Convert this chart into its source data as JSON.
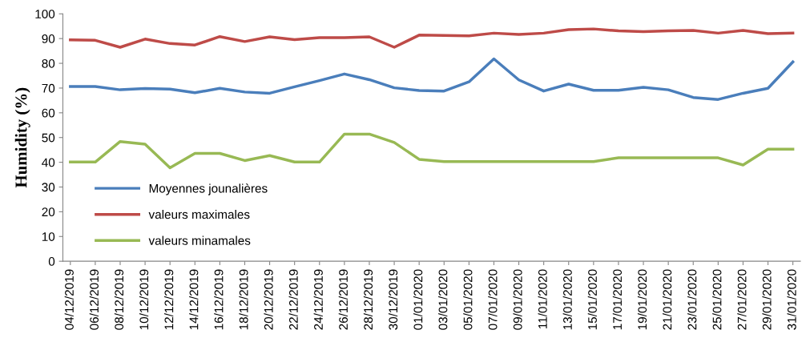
{
  "chart_data": {
    "type": "line",
    "ylabel": "Humidity (%)",
    "categories": [
      "04/12/2019",
      "06/12/2019",
      "08/12/2019",
      "10/12/2019",
      "12/12/2019",
      "14/12/2019",
      "16/12/2019",
      "18/12/2019",
      "20/12/2019",
      "22/12/2019",
      "24/12/2019",
      "26/12/2019",
      "28/12/2019",
      "30/12/2019",
      "01/01/2020",
      "03/01/2020",
      "05/01/2020",
      "07/01/2020",
      "09/01/2020",
      "11/01/2020",
      "13/01/2020",
      "15/01/2020",
      "17/01/2020",
      "19/01/2020",
      "21/01/2020",
      "23/01/2020",
      "25/01/2020",
      "27/01/2020",
      "29/01/2020",
      "31/01/2020"
    ],
    "series": [
      {
        "name": "Moyennes jounalières",
        "color": "#4a7ebb",
        "values": [
          70.6,
          70.6,
          69.3,
          69.8,
          69.6,
          68.1,
          69.9,
          68.4,
          67.9,
          70.5,
          73,
          75.7,
          73.4,
          70.1,
          69,
          68.8,
          72.5,
          81.8,
          73.3,
          68.8,
          71.6,
          69.1,
          69.1,
          70.3,
          69.3,
          66.2,
          65.4,
          67.9,
          69.9,
          80.6
        ]
      },
      {
        "name": "valeurs maximales",
        "color": "#be4b48",
        "values": [
          89.5,
          89.3,
          86.5,
          89.8,
          88,
          87.4,
          90.8,
          88.8,
          90.7,
          89.6,
          90.4,
          90.4,
          90.7,
          86.5,
          91.4,
          91.3,
          91.1,
          92.2,
          91.7,
          92.2,
          93.6,
          93.9,
          93.1,
          92.8,
          93.1,
          93.3,
          92.2,
          93.3,
          92,
          92.2
        ]
      },
      {
        "name": "valeurs minamales",
        "color": "#98b954",
        "values": [
          40.1,
          40.1,
          48.4,
          47.3,
          37.8,
          43.6,
          43.6,
          40.7,
          42.7,
          40.1,
          40.1,
          51.4,
          51.4,
          48,
          41.2,
          40.3,
          40.3,
          40.3,
          40.3,
          40.3,
          40.3,
          40.3,
          41.8,
          41.8,
          41.8,
          41.8,
          41.8,
          38.9,
          45.3,
          45.3
        ]
      }
    ],
    "ylim": [
      0,
      100
    ],
    "yticks": [
      0,
      10,
      20,
      30,
      40,
      50,
      60,
      70,
      80,
      90,
      100
    ],
    "grid": false,
    "legend": "left",
    "marker": "none",
    "line_style": "solid"
  }
}
